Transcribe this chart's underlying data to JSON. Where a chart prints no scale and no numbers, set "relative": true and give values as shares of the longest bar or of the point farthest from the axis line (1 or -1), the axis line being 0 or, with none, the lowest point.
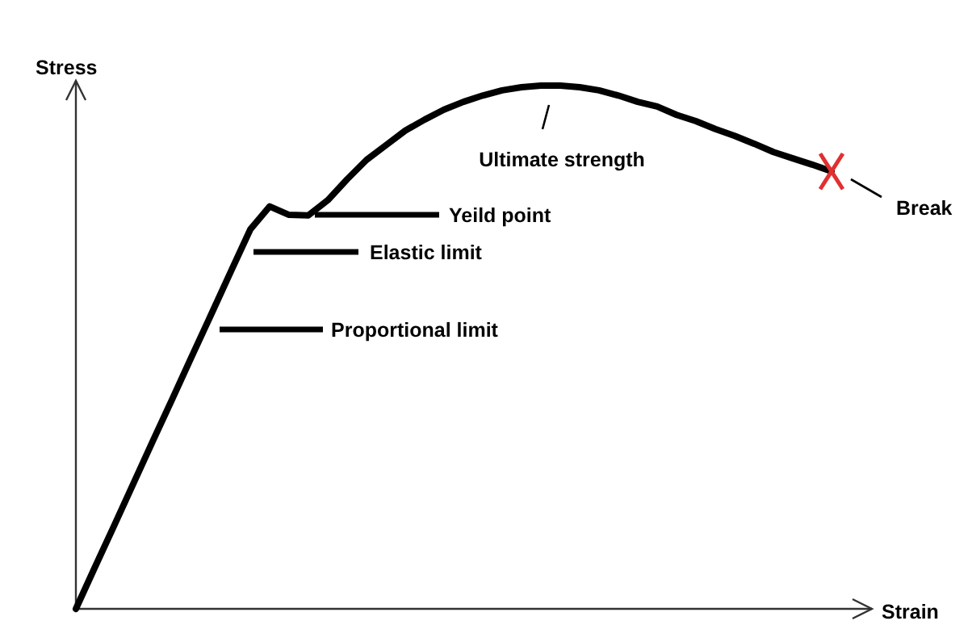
{
  "chart_data": {
    "type": "line",
    "relative": true,
    "xlabel": "Strain",
    "ylabel": "Stress",
    "categories": [
      null,
      null,
      null,
      null,
      null,
      null,
      null,
      null,
      null,
      null,
      null,
      null,
      null,
      null,
      null,
      null,
      null,
      null,
      null,
      null,
      null,
      null,
      null,
      null,
      null,
      null,
      null,
      null,
      null,
      null,
      null,
      null,
      null,
      null,
      null,
      null,
      null,
      null,
      null,
      null
    ],
    "series": [
      {
        "color": "#000000",
        "values": [
          0,
          0.081,
          0.161,
          0.242,
          0.323,
          0.403,
          0.484,
          0.564,
          0.645,
          0.725,
          0.769,
          0.753,
          0.752,
          0.781,
          0.821,
          0.858,
          0.886,
          0.914,
          0.935,
          0.954,
          0.969,
          0.981,
          0.991,
          0.997,
          1.0,
          1.0,
          0.997,
          0.991,
          0.981,
          0.969,
          0.96,
          0.944,
          0.932,
          0.917,
          0.904,
          0.889,
          0.873,
          0.861,
          0.849,
          0.836
        ]
      }
    ],
    "annotations": [
      "Proportional limit",
      "Elastic limit",
      "Yeild point",
      "Ultimate strength",
      "Break"
    ]
  }
}
